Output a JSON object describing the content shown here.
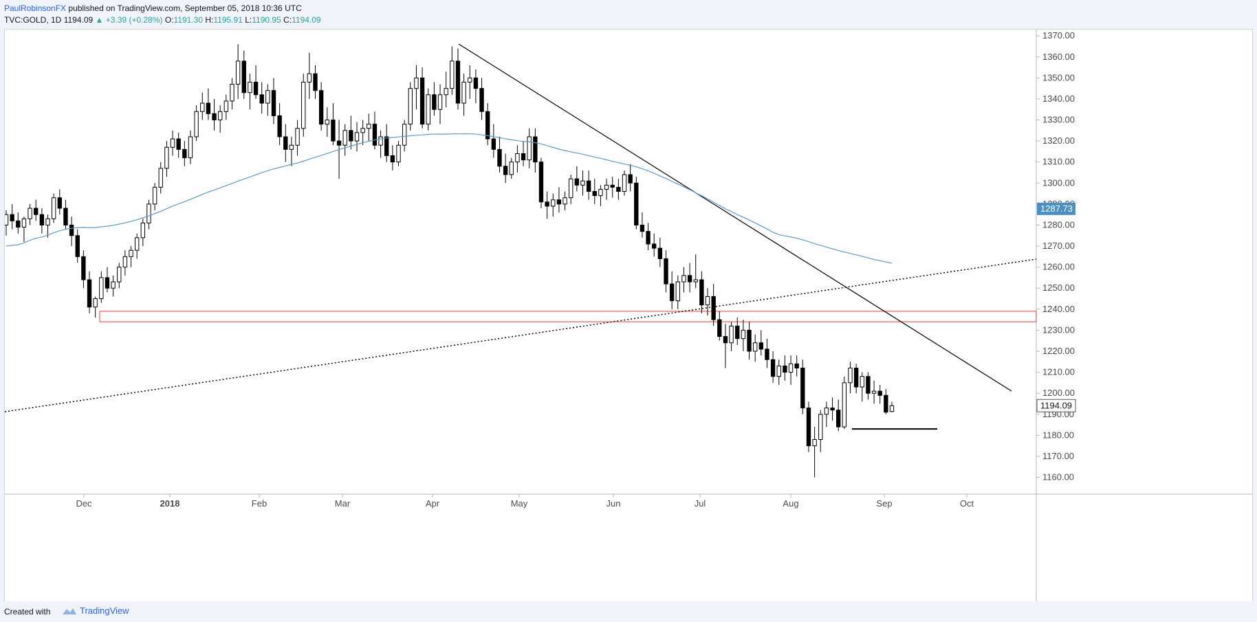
{
  "header": {
    "author": "PaulRobinsonFX",
    "published": "published on TradingView.com, September 05, 2018 10:36 UTC",
    "symbol": "TVC:GOLD, 1D",
    "last": "1194.09",
    "change": "+3.39 (+0.28%)",
    "o_label": "O:",
    "o": "1191.30",
    "h_label": "H:",
    "h": "1195.91",
    "l_label": "L:",
    "l": "1190.95",
    "c_label": "C:",
    "c": "1194.09"
  },
  "footer": {
    "created": "Created with",
    "brand": "TradingView"
  },
  "chart_data": {
    "type": "candlestick",
    "symbol": "TVC:GOLD",
    "interval": "1D",
    "ylim": [
      1152,
      1373
    ],
    "y_ticks": [
      "1370.00",
      "1360.00",
      "1350.00",
      "1340.00",
      "1330.00",
      "1320.00",
      "1310.00",
      "1300.00",
      "1290.00",
      "1280.00",
      "1270.00",
      "1260.00",
      "1250.00",
      "1240.00",
      "1230.00",
      "1220.00",
      "1210.00",
      "1200.00",
      "1190.00",
      "1180.00",
      "1170.00",
      "1160.00"
    ],
    "x_ticks": [
      "Dec",
      "2018",
      "Feb",
      "Mar",
      "Apr",
      "May",
      "Jun",
      "Jul",
      "Aug",
      "Sep",
      "Oct"
    ],
    "ma_label": "1287.73",
    "last_label": "1194.09",
    "colors": {
      "bull": "#ffffff",
      "bear": "#000000",
      "wick": "#000000",
      "ma": "#5b9bc8",
      "zone": "#e53935",
      "badge_ma": "#4a90c2"
    },
    "candles": [
      [
        1280,
        1287,
        1275,
        1285
      ],
      [
        1285,
        1290,
        1278,
        1282
      ],
      [
        1282,
        1286,
        1276,
        1279
      ],
      [
        1279,
        1284,
        1272,
        1283
      ],
      [
        1283,
        1290,
        1280,
        1288
      ],
      [
        1288,
        1292,
        1282,
        1285
      ],
      [
        1285,
        1288,
        1276,
        1280
      ],
      [
        1280,
        1285,
        1274,
        1283
      ],
      [
        1283,
        1295,
        1281,
        1293
      ],
      [
        1293,
        1297,
        1285,
        1288
      ],
      [
        1288,
        1292,
        1278,
        1280
      ],
      [
        1280,
        1284,
        1270,
        1275
      ],
      [
        1275,
        1278,
        1262,
        1265
      ],
      [
        1265,
        1268,
        1250,
        1254
      ],
      [
        1254,
        1258,
        1238,
        1241
      ],
      [
        1241,
        1246,
        1236,
        1245
      ],
      [
        1245,
        1258,
        1243,
        1255
      ],
      [
        1255,
        1260,
        1248,
        1250
      ],
      [
        1250,
        1256,
        1246,
        1253
      ],
      [
        1253,
        1262,
        1250,
        1260
      ],
      [
        1260,
        1268,
        1256,
        1265
      ],
      [
        1265,
        1270,
        1260,
        1268
      ],
      [
        1268,
        1276,
        1264,
        1274
      ],
      [
        1274,
        1283,
        1270,
        1281
      ],
      [
        1281,
        1292,
        1278,
        1290
      ],
      [
        1290,
        1300,
        1287,
        1298
      ],
      [
        1298,
        1310,
        1295,
        1307
      ],
      [
        1307,
        1320,
        1303,
        1317
      ],
      [
        1317,
        1325,
        1313,
        1321
      ],
      [
        1321,
        1324,
        1312,
        1316
      ],
      [
        1316,
        1320,
        1308,
        1312
      ],
      [
        1312,
        1325,
        1309,
        1322
      ],
      [
        1322,
        1337,
        1320,
        1334
      ],
      [
        1334,
        1343,
        1330,
        1338
      ],
      [
        1338,
        1345,
        1330,
        1333
      ],
      [
        1333,
        1340,
        1325,
        1330
      ],
      [
        1330,
        1337,
        1324,
        1334
      ],
      [
        1334,
        1342,
        1330,
        1339
      ],
      [
        1339,
        1350,
        1335,
        1347
      ],
      [
        1347,
        1366,
        1340,
        1358
      ],
      [
        1358,
        1363,
        1340,
        1343
      ],
      [
        1343,
        1352,
        1335,
        1348
      ],
      [
        1348,
        1356,
        1340,
        1342
      ],
      [
        1342,
        1348,
        1333,
        1338
      ],
      [
        1338,
        1347,
        1332,
        1344
      ],
      [
        1344,
        1350,
        1328,
        1332
      ],
      [
        1332,
        1338,
        1318,
        1322
      ],
      [
        1322,
        1328,
        1310,
        1316
      ],
      [
        1316,
        1322,
        1308,
        1318
      ],
      [
        1318,
        1330,
        1313,
        1326
      ],
      [
        1326,
        1352,
        1322,
        1348
      ],
      [
        1348,
        1362,
        1340,
        1352
      ],
      [
        1352,
        1356,
        1340,
        1344
      ],
      [
        1344,
        1348,
        1325,
        1328
      ],
      [
        1328,
        1336,
        1322,
        1330
      ],
      [
        1330,
        1338,
        1318,
        1320
      ],
      [
        1320,
        1330,
        1302,
        1318
      ],
      [
        1318,
        1328,
        1313,
        1325
      ],
      [
        1325,
        1332,
        1316,
        1320
      ],
      [
        1320,
        1329,
        1315,
        1324
      ],
      [
        1324,
        1330,
        1318,
        1326
      ],
      [
        1326,
        1333,
        1320,
        1328
      ],
      [
        1328,
        1334,
        1316,
        1318
      ],
      [
        1318,
        1325,
        1312,
        1322
      ],
      [
        1322,
        1328,
        1310,
        1313
      ],
      [
        1313,
        1318,
        1306,
        1310
      ],
      [
        1310,
        1320,
        1308,
        1318
      ],
      [
        1318,
        1330,
        1315,
        1328
      ],
      [
        1328,
        1348,
        1325,
        1345
      ],
      [
        1345,
        1356,
        1335,
        1350
      ],
      [
        1350,
        1355,
        1326,
        1328
      ],
      [
        1328,
        1345,
        1325,
        1342
      ],
      [
        1342,
        1348,
        1332,
        1335
      ],
      [
        1335,
        1347,
        1328,
        1342
      ],
      [
        1342,
        1353,
        1336,
        1345
      ],
      [
        1345,
        1365,
        1342,
        1358
      ],
      [
        1358,
        1364,
        1335,
        1338
      ],
      [
        1338,
        1352,
        1332,
        1348
      ],
      [
        1348,
        1356,
        1340,
        1350
      ],
      [
        1350,
        1354,
        1338,
        1345
      ],
      [
        1345,
        1350,
        1330,
        1334
      ],
      [
        1334,
        1338,
        1318,
        1321
      ],
      [
        1321,
        1328,
        1312,
        1316
      ],
      [
        1316,
        1322,
        1305,
        1308
      ],
      [
        1308,
        1314,
        1300,
        1304
      ],
      [
        1304,
        1312,
        1302,
        1310
      ],
      [
        1310,
        1318,
        1305,
        1314
      ],
      [
        1314,
        1320,
        1308,
        1311
      ],
      [
        1311,
        1326,
        1307,
        1322
      ],
      [
        1322,
        1326,
        1305,
        1310
      ],
      [
        1310,
        1312,
        1288,
        1291
      ],
      [
        1291,
        1296,
        1283,
        1289
      ],
      [
        1289,
        1295,
        1284,
        1292
      ],
      [
        1292,
        1298,
        1286,
        1290
      ],
      [
        1290,
        1296,
        1287,
        1293
      ],
      [
        1293,
        1304,
        1290,
        1302
      ],
      [
        1302,
        1308,
        1296,
        1299
      ],
      [
        1299,
        1306,
        1294,
        1301
      ],
      [
        1301,
        1306,
        1292,
        1296
      ],
      [
        1296,
        1302,
        1290,
        1294
      ],
      [
        1294,
        1299,
        1289,
        1297
      ],
      [
        1297,
        1302,
        1292,
        1299
      ],
      [
        1299,
        1303,
        1293,
        1298
      ],
      [
        1298,
        1302,
        1292,
        1296
      ],
      [
        1296,
        1306,
        1294,
        1304
      ],
      [
        1304,
        1309,
        1296,
        1300
      ],
      [
        1300,
        1303,
        1278,
        1280
      ],
      [
        1280,
        1286,
        1274,
        1277
      ],
      [
        1277,
        1281,
        1268,
        1271
      ],
      [
        1271,
        1276,
        1265,
        1269
      ],
      [
        1269,
        1274,
        1260,
        1264
      ],
      [
        1264,
        1268,
        1248,
        1252
      ],
      [
        1252,
        1258,
        1240,
        1244
      ],
      [
        1244,
        1256,
        1240,
        1253
      ],
      [
        1253,
        1260,
        1248,
        1256
      ],
      [
        1256,
        1262,
        1248,
        1253
      ],
      [
        1253,
        1266,
        1250,
        1254
      ],
      [
        1254,
        1258,
        1238,
        1242
      ],
      [
        1242,
        1250,
        1237,
        1246
      ],
      [
        1246,
        1252,
        1232,
        1235
      ],
      [
        1235,
        1239,
        1225,
        1227
      ],
      [
        1227,
        1233,
        1212,
        1224
      ],
      [
        1224,
        1234,
        1220,
        1232
      ],
      [
        1232,
        1236,
        1223,
        1226
      ],
      [
        1226,
        1235,
        1220,
        1230
      ],
      [
        1230,
        1234,
        1216,
        1220
      ],
      [
        1220,
        1228,
        1215,
        1224
      ],
      [
        1224,
        1230,
        1218,
        1221
      ],
      [
        1221,
        1226,
        1212,
        1216
      ],
      [
        1216,
        1220,
        1205,
        1208
      ],
      [
        1208,
        1216,
        1204,
        1213
      ],
      [
        1213,
        1218,
        1206,
        1210
      ],
      [
        1210,
        1218,
        1204,
        1214
      ],
      [
        1214,
        1218,
        1208,
        1212
      ],
      [
        1212,
        1216,
        1190,
        1193
      ],
      [
        1193,
        1196,
        1172,
        1175
      ],
      [
        1175,
        1184,
        1160,
        1178
      ],
      [
        1178,
        1192,
        1172,
        1190
      ],
      [
        1190,
        1196,
        1184,
        1193
      ],
      [
        1193,
        1198,
        1187,
        1192
      ],
      [
        1192,
        1197,
        1182,
        1184
      ],
      [
        1184,
        1208,
        1183,
        1205
      ],
      [
        1205,
        1215,
        1200,
        1212
      ],
      [
        1212,
        1214,
        1200,
        1203
      ],
      [
        1203,
        1210,
        1196,
        1208
      ],
      [
        1208,
        1210,
        1197,
        1200
      ],
      [
        1200,
        1206,
        1195,
        1201
      ],
      [
        1201,
        1204,
        1195,
        1199
      ],
      [
        1199,
        1202,
        1190,
        1191
      ],
      [
        1191.3,
        1195.91,
        1190.95,
        1194.09
      ]
    ]
  }
}
